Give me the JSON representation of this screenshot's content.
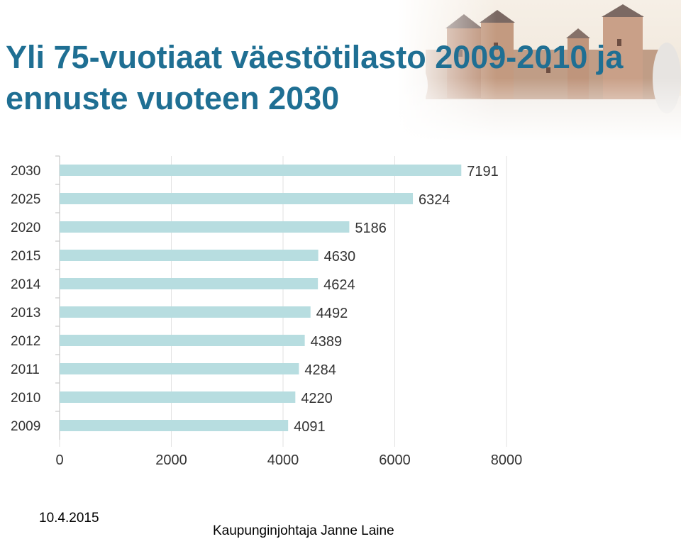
{
  "slide": {
    "title": "Yli 75-vuotiaat väestötilasto 2009-2010 ja ennuste vuoteen 2030",
    "date": "10.4.2015",
    "author": "Kaupunginjohtaja Janne Laine"
  },
  "colors": {
    "title": "#1f6f93",
    "bar": "#b7dde0",
    "grid": "#e2e2e2",
    "text": "#333333"
  },
  "chart_data": {
    "type": "bar",
    "orientation": "horizontal",
    "categories": [
      "2030",
      "2025",
      "2020",
      "2015",
      "2014",
      "2013",
      "2012",
      "2011",
      "2010",
      "2009"
    ],
    "values": [
      7191,
      6324,
      5186,
      4630,
      4624,
      4492,
      4389,
      4284,
      4220,
      4091
    ],
    "data_labels": [
      "7191",
      "6324",
      "5186",
      "4630",
      "4624",
      "4492",
      "4389",
      "4284",
      "4220",
      "4091"
    ],
    "x_ticks": [
      "0",
      "2000",
      "4000",
      "6000",
      "8000"
    ],
    "xlim": [
      0,
      8000
    ],
    "grid": "vertical",
    "legend": "none"
  }
}
